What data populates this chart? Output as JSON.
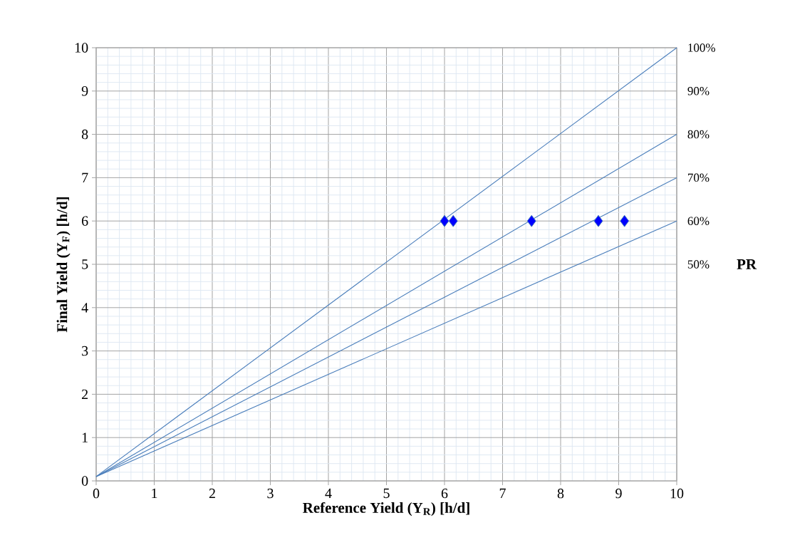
{
  "chart_data": {
    "type": "line",
    "xlabel": "Reference Yield (Y$_{R}$) [h/d]",
    "ylabel": "Final Yield (Y$_{F}$) [h/d]",
    "y2label": "PR",
    "xlim": [
      0,
      10
    ],
    "ylim": [
      0,
      10
    ],
    "xticks": [
      0,
      1,
      2,
      3,
      4,
      5,
      6,
      7,
      8,
      9,
      10
    ],
    "yticks": [
      0,
      1,
      2,
      3,
      4,
      5,
      6,
      7,
      8,
      9,
      10
    ],
    "y2lim": [
      0,
      100
    ],
    "y2ticks": [
      {
        "value": 50,
        "label": "50%"
      },
      {
        "value": 60,
        "label": "60%"
      },
      {
        "value": 70,
        "label": "70%"
      },
      {
        "value": 80,
        "label": "80%"
      },
      {
        "value": 90,
        "label": "90%"
      },
      {
        "value": 100,
        "label": "100%"
      }
    ],
    "grid": true,
    "series": [
      {
        "color": "#4a7ebb",
        "marker": "none",
        "x": [
          0,
          10
        ],
        "values": [
          0.1,
          10
        ]
      },
      {
        "color": "#4a7ebb",
        "marker": "none",
        "x": [
          0,
          10
        ],
        "values": [
          0.1,
          8
        ]
      },
      {
        "color": "#4a7ebb",
        "marker": "none",
        "x": [
          0,
          10
        ],
        "values": [
          0.1,
          7
        ]
      },
      {
        "color": "#4a7ebb",
        "marker": "none",
        "x": [
          0,
          10
        ],
        "values": [
          0.1,
          6
        ]
      },
      {
        "type": "scatter",
        "color": "#0000ff",
        "marker": "diamond",
        "x": [
          6.0,
          6.15,
          7.5,
          8.65,
          9.1
        ],
        "values": [
          6,
          6,
          6,
          6,
          6
        ]
      }
    ]
  }
}
